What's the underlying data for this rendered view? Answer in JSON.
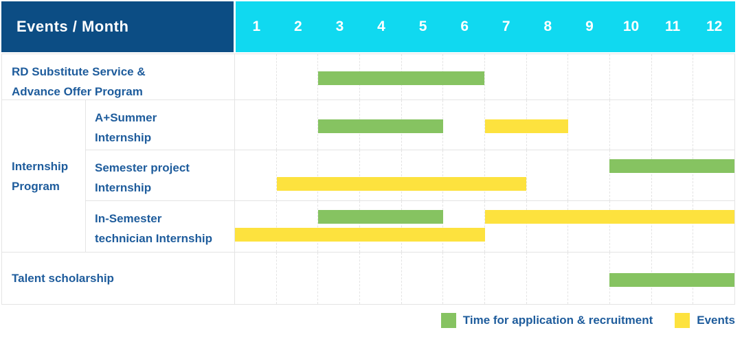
{
  "header": {
    "corner_label": "Events / Month"
  },
  "colors": {
    "header_navy": "#0C4D84",
    "header_cyan": "#10D9F0",
    "bar_green": "#86C361",
    "bar_yellow": "#FDE23E",
    "label_blue": "#1E5C9C",
    "grid_line": "#E4E4E4",
    "grid_dash": "#E3E3E3"
  },
  "legend": {
    "items": [
      {
        "swatch": "green",
        "label": "Time for application & recruitment"
      },
      {
        "swatch": "yellow",
        "label": "Events"
      }
    ]
  },
  "chart_data": {
    "type": "gantt",
    "title": "Events / Month",
    "x_axis": {
      "label": "Month",
      "ticks": [
        "1",
        "2",
        "3",
        "4",
        "5",
        "6",
        "7",
        "8",
        "9",
        "10",
        "11",
        "12"
      ],
      "range": [
        1,
        12
      ]
    },
    "series_legend": [
      {
        "name": "Time for application & recruitment",
        "color": "#86C361"
      },
      {
        "name": "Events",
        "color": "#FDE23E"
      }
    ],
    "groups": {
      "Internship Program": {
        "label_lines": [
          "Internship",
          "Program"
        ]
      }
    },
    "rows": [
      {
        "label": "RD Substitute Service & Advance Offer Program",
        "label_lines": [
          "RD Substitute Service &",
          "Advance Offer Program"
        ],
        "group": null,
        "bars": [
          {
            "series": "Time for application & recruitment",
            "color_key": "green",
            "start_month": 3,
            "end_month": 6,
            "lane": "center"
          }
        ]
      },
      {
        "label": "A+Summer Internship",
        "label_lines": [
          "A+Summer",
          "Internship"
        ],
        "group": "Internship Program",
        "bars": [
          {
            "series": "Time for application & recruitment",
            "color_key": "green",
            "start_month": 3,
            "end_month": 5,
            "lane": "center"
          },
          {
            "series": "Events",
            "color_key": "yellow",
            "start_month": 7,
            "end_month": 8,
            "lane": "center"
          }
        ]
      },
      {
        "label": "Semester project Internship",
        "label_lines": [
          "Semester project",
          "Internship"
        ],
        "group": "Internship Program",
        "bars": [
          {
            "series": "Time for application & recruitment",
            "color_key": "green",
            "start_month": 10,
            "end_month": 12,
            "lane": "upper"
          },
          {
            "series": "Events",
            "color_key": "yellow",
            "start_month": 2,
            "end_month": 7,
            "lane": "lower"
          }
        ]
      },
      {
        "label": "In-Semester technician Internship",
        "label_lines": [
          "In-Semester",
          "technician Internship"
        ],
        "group": "Internship Program",
        "bars": [
          {
            "series": "Time for application & recruitment",
            "color_key": "green",
            "start_month": 3,
            "end_month": 5,
            "lane": "upper"
          },
          {
            "series": "Events",
            "color_key": "yellow",
            "start_month": 7,
            "end_month": 12,
            "lane": "upper"
          },
          {
            "series": "Events",
            "color_key": "yellow",
            "start_month": 1,
            "end_month": 6,
            "lane": "lower"
          }
        ]
      },
      {
        "label": "Talent scholarship",
        "label_lines": [
          "Talent scholarship"
        ],
        "group": null,
        "bars": [
          {
            "series": "Time for application & recruitment",
            "color_key": "green",
            "start_month": 10,
            "end_month": 12,
            "lane": "center"
          }
        ]
      }
    ]
  }
}
